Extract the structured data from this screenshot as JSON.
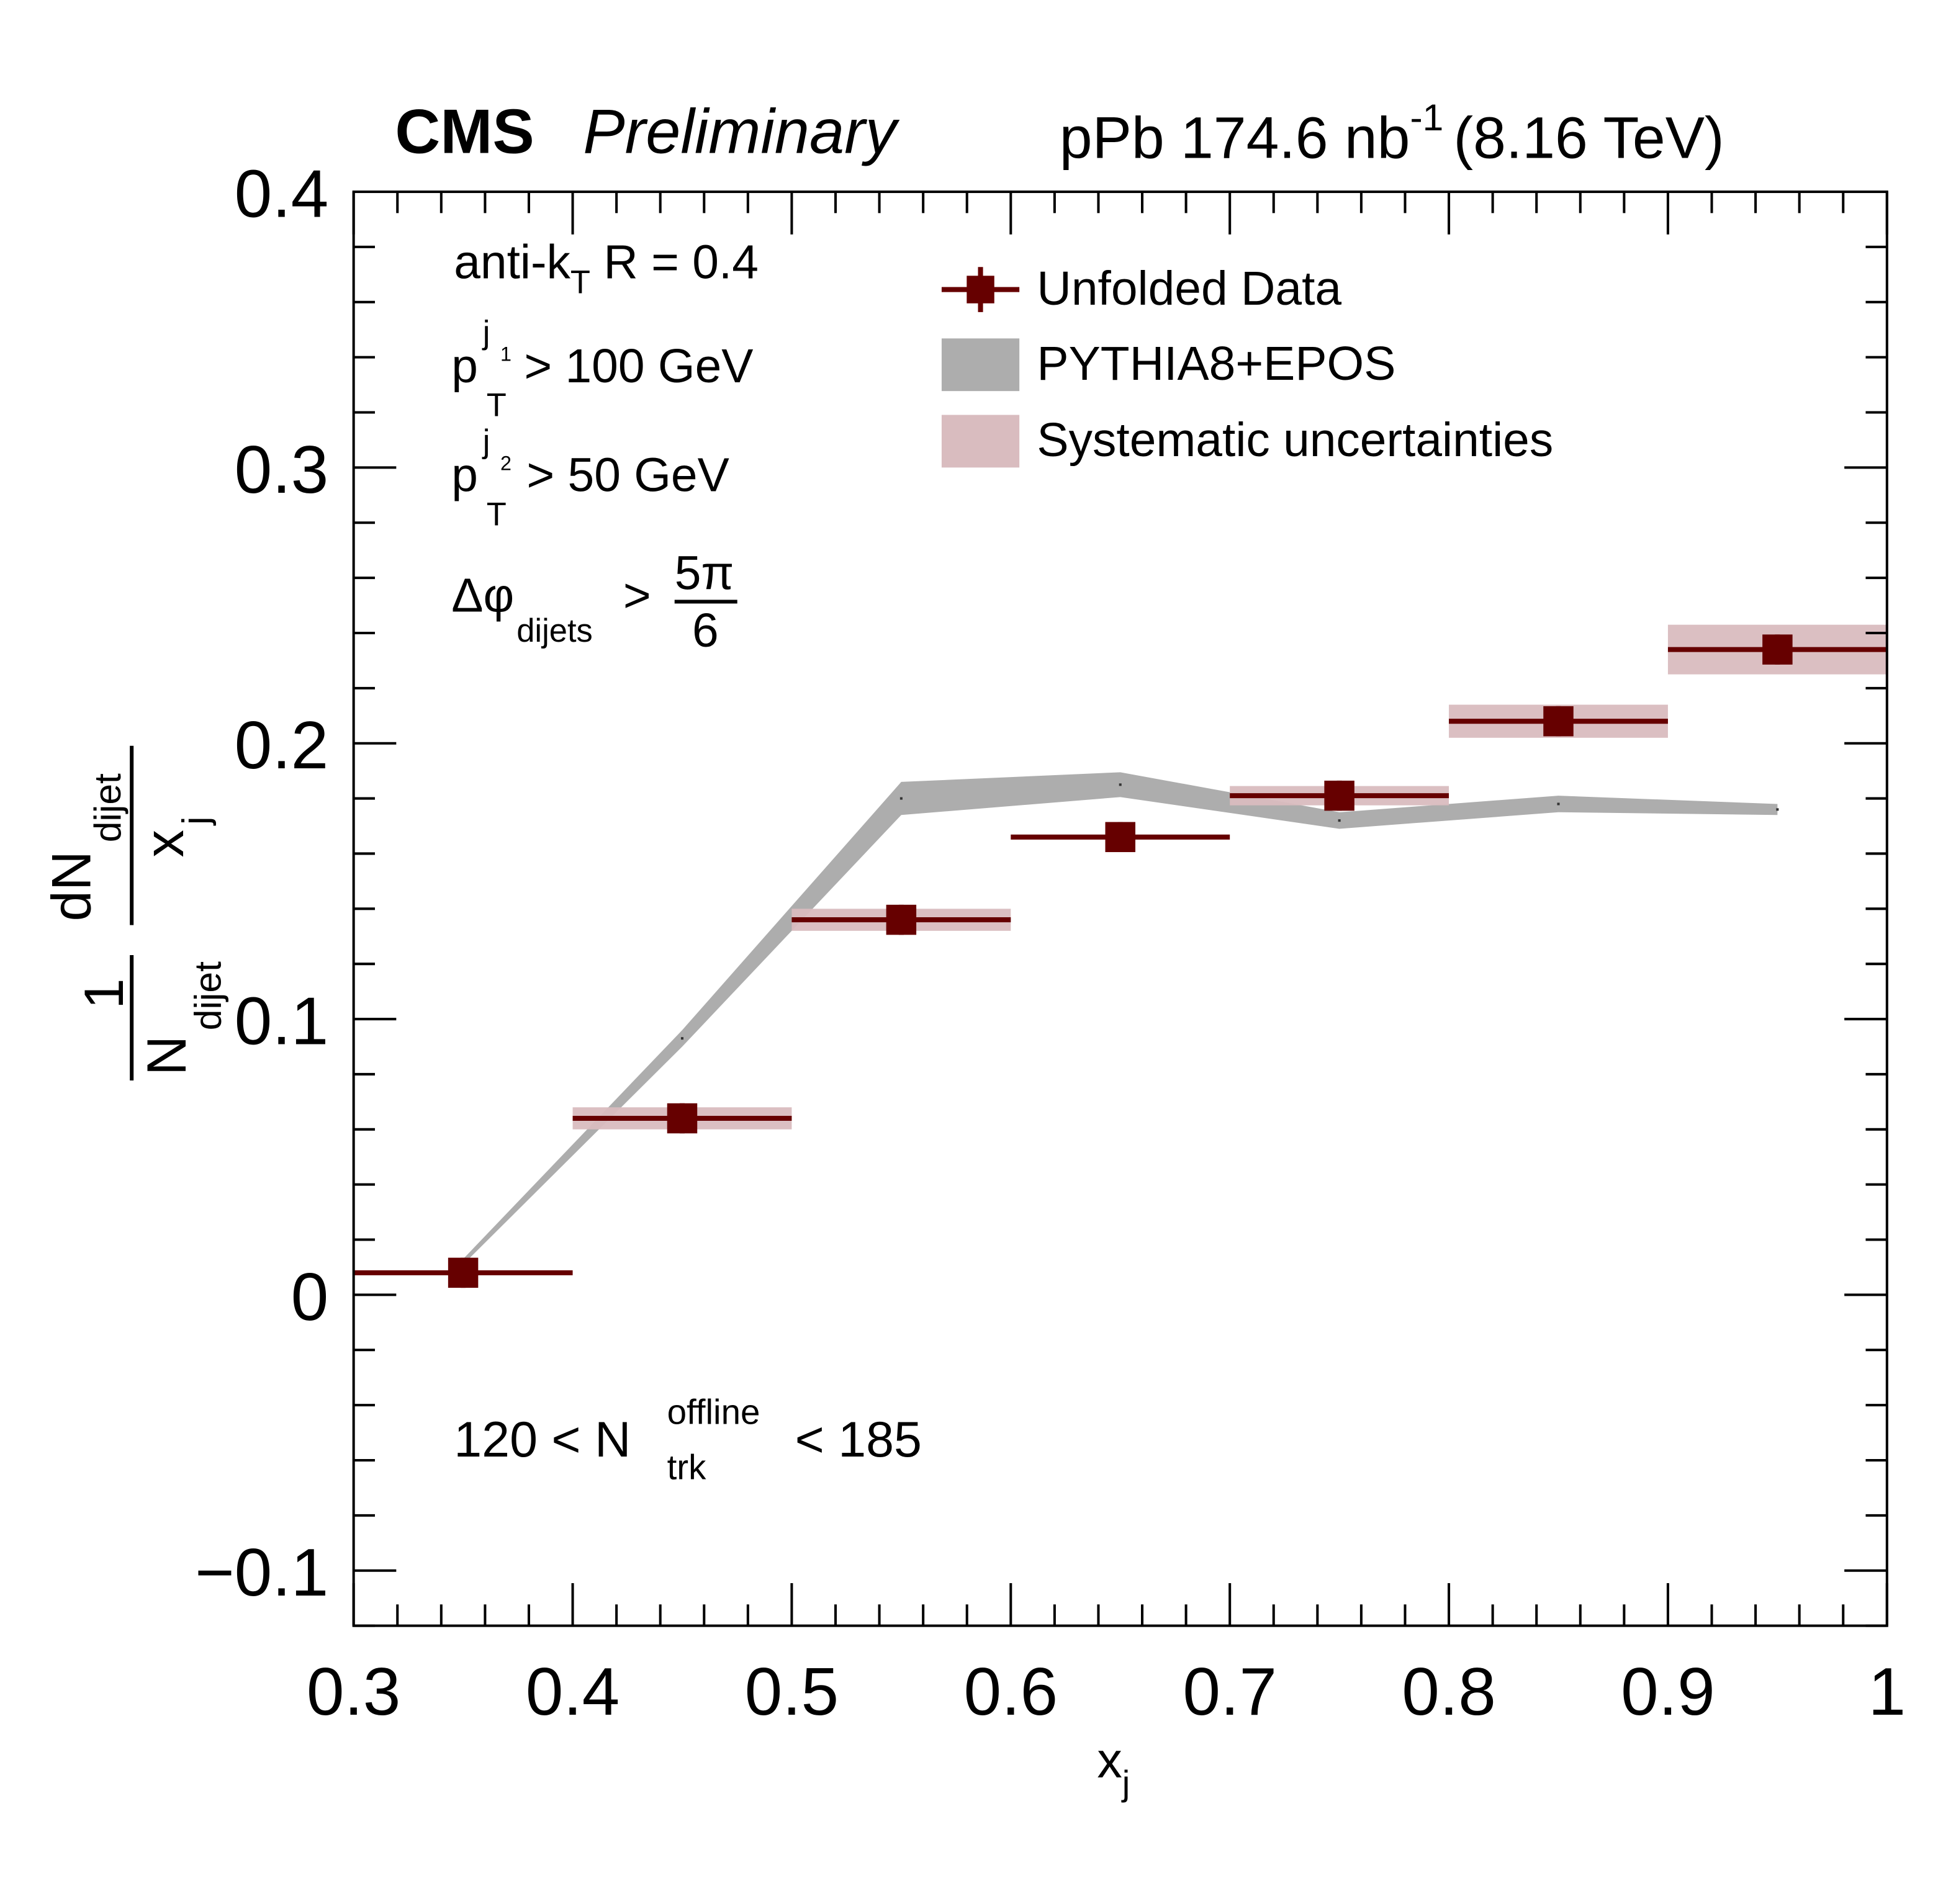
{
  "header": {
    "experiment": "CMS",
    "status": "Preliminary",
    "lumi_text": "pPb 174.6 nb",
    "lumi_exp": "-1",
    "energy": "(8.16 TeV)"
  },
  "annotations": {
    "algo_main": "anti-k",
    "algo_sub": "T",
    "algo_rest": " R = 0.4",
    "pt1_p": "p",
    "pt1_sub": "T",
    "pt1_sup": "j",
    "pt1_supsub": "1",
    "pt1_rest": "> 100 GeV",
    "pt2_p": "p",
    "pt2_sub": "T",
    "pt2_sup": "j",
    "pt2_supsub": "2",
    "pt2_rest": "> 50 GeV",
    "dphi": "Δφ",
    "dphi_sub": "dijets",
    "dphi_gt": ">",
    "dphi_num": "5π",
    "dphi_den": "6",
    "mult_left": "120 < N",
    "mult_sup": "offline",
    "mult_sub": "trk",
    "mult_right": "< 185"
  },
  "chart_data": {
    "type": "scatter",
    "xlabel": "x",
    "xlabel_sub": "j",
    "ylabel_parts": {
      "one": "1",
      "n": "N",
      "n_sub": "dijet",
      "dn": "dN",
      "dn_sub": "dijet",
      "x": "x",
      "x_sub": "j"
    },
    "xlim": [
      0.3,
      1.0
    ],
    "ylim": [
      -0.12,
      0.4
    ],
    "xticks": [
      "0.3",
      "0.4",
      "0.5",
      "0.6",
      "0.7",
      "0.8",
      "0.9",
      "1"
    ],
    "yticks": [
      "−0.1",
      "0",
      "0.1",
      "0.2",
      "0.3",
      "0.4"
    ],
    "grid": false,
    "legend_placement": "top-right",
    "legend": [
      "Unfolded Data",
      "PYTHIA8+EPOS",
      "Systematic uncertainties"
    ],
    "colors": {
      "data": "#660000",
      "syst": "#d9bcbf",
      "mc": "#adadad"
    },
    "series": [
      {
        "name": "Unfolded Data",
        "x": [
          0.35,
          0.45,
          0.55,
          0.65,
          0.75,
          0.85,
          0.95
        ],
        "x_low": [
          0.3,
          0.4,
          0.5,
          0.6,
          0.7,
          0.8,
          0.9
        ],
        "x_high": [
          0.4,
          0.5,
          0.6,
          0.7,
          0.8,
          0.9,
          1.0
        ],
        "y": [
          0.008,
          0.064,
          0.136,
          0.166,
          0.181,
          0.208,
          0.234
        ],
        "syst": [
          0.0,
          0.004,
          0.004,
          0.0,
          0.0035,
          0.006,
          0.009
        ]
      },
      {
        "name": "PYTHIA8+EPOS",
        "x": [
          0.35,
          0.45,
          0.55,
          0.65,
          0.75,
          0.85,
          0.95
        ],
        "y": [
          0.012,
          0.093,
          0.18,
          0.185,
          0.172,
          0.178,
          0.176
        ],
        "err": [
          0.001,
          0.003,
          0.006,
          0.0045,
          0.003,
          0.003,
          0.002
        ]
      }
    ]
  }
}
